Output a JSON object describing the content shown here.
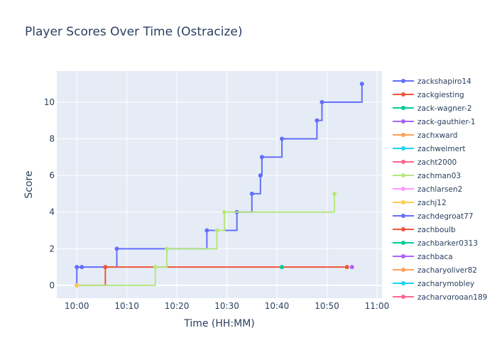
{
  "chart_data": {
    "type": "line",
    "title": "Player Scores Over Time (Ostracize)",
    "xlabel": "Time (HH:MM)",
    "ylabel": "Score",
    "xlim": [
      "09:56",
      "11:01"
    ],
    "ylim": [
      -0.7,
      11.7
    ],
    "x_ticks": [
      "10:00",
      "10:10",
      "10:20",
      "10:30",
      "10:40",
      "10:50",
      "11:00"
    ],
    "y_ticks": [
      0,
      2,
      4,
      6,
      8,
      10
    ],
    "grid": true,
    "legend_position": "right",
    "series": [
      {
        "name": "zackshapiro14",
        "color": "#636efa",
        "shape": "hv",
        "x": [
          "10:00",
          "10:00",
          "10:01",
          "10:08",
          "10:26",
          "10:32",
          "10:35",
          "10:36.7",
          "10:37",
          "10:41",
          "10:48",
          "10:49",
          "10:57"
        ],
        "y": [
          0,
          1,
          1,
          2,
          3,
          4,
          5,
          6,
          7,
          8,
          9,
          10,
          11
        ]
      },
      {
        "name": "zackgiesting",
        "color": "#ef553b",
        "shape": "hv",
        "x": [
          "10:00",
          "10:05.7",
          "10:54"
        ],
        "y": [
          0,
          1,
          1
        ]
      },
      {
        "name": "zack-wagner-2",
        "color": "#00cc96",
        "shape": "points",
        "x": [
          "10:41"
        ],
        "y": [
          1
        ]
      },
      {
        "name": "zack-gauthier-1",
        "color": "#ab63fa",
        "shape": "points",
        "x": [
          "10:55"
        ],
        "y": [
          1
        ]
      },
      {
        "name": "zachxward",
        "color": "#ffa15a",
        "shape": "points",
        "x": [],
        "y": []
      },
      {
        "name": "zachweimert",
        "color": "#19d3f3",
        "shape": "points",
        "x": [],
        "y": []
      },
      {
        "name": "zacht2000",
        "color": "#ff6692",
        "shape": "points",
        "x": [],
        "y": []
      },
      {
        "name": "zachman03",
        "color": "#b6e880",
        "shape": "hv",
        "x": [
          "10:00",
          "10:15.7",
          "10:18",
          "10:28",
          "10:29.5",
          "10:51.5"
        ],
        "y": [
          0,
          1,
          2,
          3,
          4,
          5
        ]
      },
      {
        "name": "zachlarsen2",
        "color": "#ff97ff",
        "shape": "points",
        "x": [],
        "y": []
      },
      {
        "name": "zachj12",
        "color": "#fecb52",
        "shape": "points",
        "x": [
          "10:00"
        ],
        "y": [
          0
        ]
      },
      {
        "name": "zachdegroat77",
        "color": "#636efa",
        "shape": "points",
        "x": [],
        "y": []
      },
      {
        "name": "zachboulb",
        "color": "#ef553b",
        "shape": "points",
        "x": [],
        "y": []
      },
      {
        "name": "zachbarker0313",
        "color": "#00cc96",
        "shape": "points",
        "x": [],
        "y": []
      },
      {
        "name": "zachbaca",
        "color": "#ab63fa",
        "shape": "points",
        "x": [],
        "y": []
      },
      {
        "name": "zacharyoliver82",
        "color": "#ffa15a",
        "shape": "points",
        "x": [],
        "y": []
      },
      {
        "name": "zacharymobley",
        "color": "#19d3f3",
        "shape": "points",
        "x": [],
        "y": []
      },
      {
        "name": "zacharygrogan189",
        "color": "#ff6692",
        "shape": "points",
        "x": [],
        "y": []
      }
    ]
  }
}
